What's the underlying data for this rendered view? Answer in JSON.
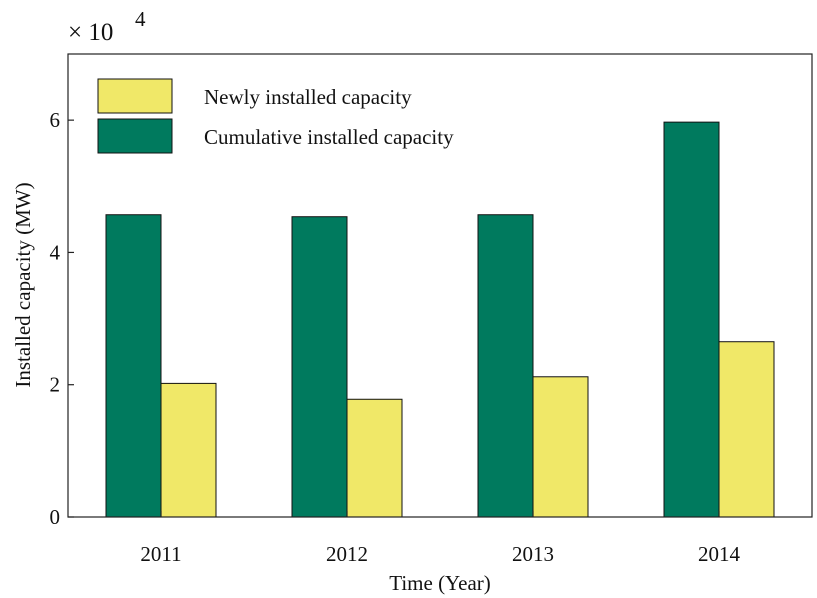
{
  "chart_data": {
    "type": "bar",
    "categories": [
      "2011",
      "2012",
      "2013",
      "2014"
    ],
    "series": [
      {
        "name": "Cumulative installed capacity",
        "values": [
          45700,
          45400,
          45700,
          59700
        ],
        "color": "#007a5e"
      },
      {
        "name": "Newly installed capacity",
        "values": [
          20200,
          17800,
          21200,
          26500
        ],
        "color": "#f0e868"
      }
    ],
    "xlabel": "Time (Year)",
    "ylabel": "Installed capacity (MW)",
    "ylim": [
      0,
      70000
    ],
    "yticks": [
      0,
      2,
      4,
      6
    ],
    "ytick_labels": [
      "0",
      "2",
      "4",
      "6"
    ],
    "y_multiplier": {
      "base": "× 10",
      "exponent": "4"
    },
    "grid": false,
    "legend_placement": "top-left",
    "legend_order": [
      "Newly installed capacity",
      "Cumulative installed capacity"
    ]
  }
}
